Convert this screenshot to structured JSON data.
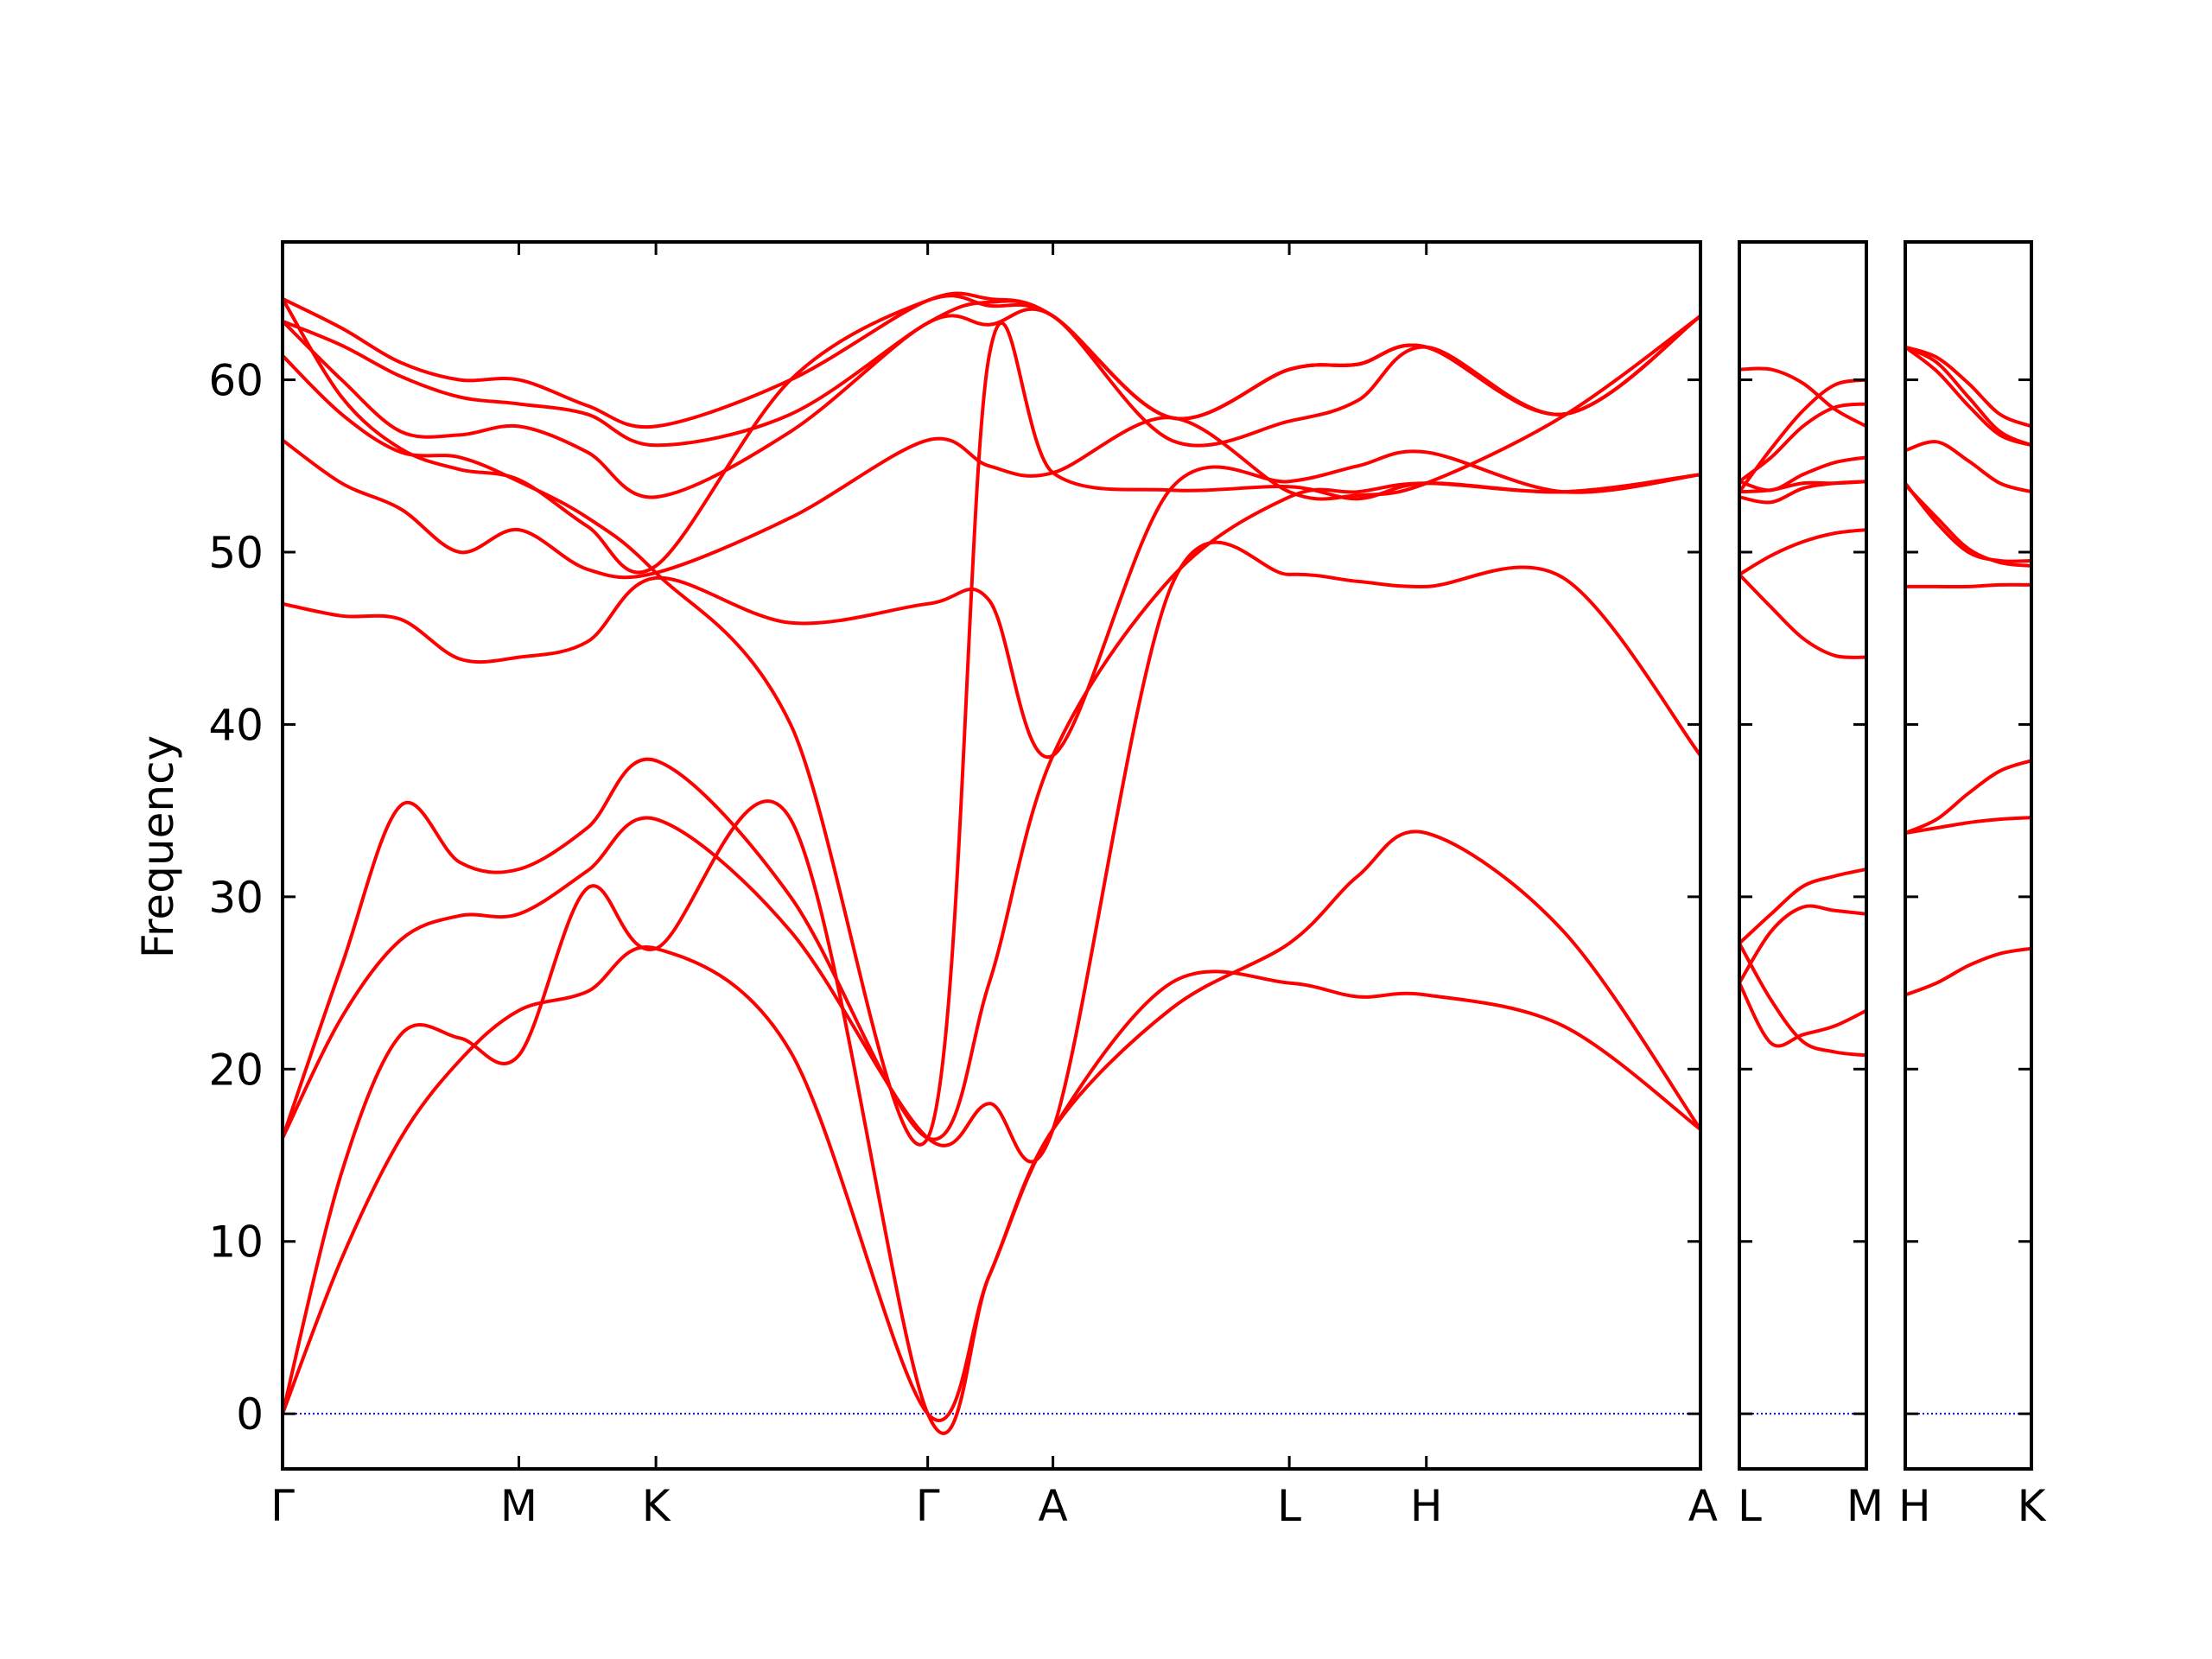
{
  "chart_data": {
    "type": "line",
    "title": "",
    "ylabel": "Frequency",
    "xlabel": "",
    "ylim": [
      -3.2,
      68.0
    ],
    "yticks": [
      0,
      10,
      20,
      30,
      40,
      50,
      60
    ],
    "grid": false,
    "legend": "none",
    "colors": {
      "band": "#ff0000",
      "zero_line": "#0000ff",
      "axes": "#000000",
      "background": "#ffffff"
    },
    "panels": [
      {
        "name": "panel-1",
        "xlim": [
          0,
          6
        ],
        "labels": [
          {
            "x": 0,
            "text": "Γ"
          },
          {
            "x": 1,
            "text": "M"
          },
          {
            "x": 1.58,
            "text": "K"
          },
          {
            "x": 2.73,
            "text": "Γ"
          },
          {
            "x": 3.26,
            "text": "A"
          },
          {
            "x": 4.26,
            "text": "L"
          },
          {
            "x": 4.84,
            "text": "H"
          },
          {
            "x": 6,
            "text": "A"
          }
        ],
        "bands": [
          {
            "x": [
              0,
              0.25,
              0.5,
              0.75,
              1,
              1.29,
              1.58,
              2.15,
              2.73,
              2.99,
              3.26,
              3.76,
              4.26,
              4.55,
              4.84,
              5.42,
              6
            ],
            "y": [
              0,
              9,
              16,
              20.5,
              23.4,
              24.5,
              27,
              21,
              0,
              8,
              16.5,
              25,
              25,
              24.2,
              24.3,
              22.5,
              16.5
            ]
          },
          {
            "x": [
              0,
              0.25,
              0.5,
              0.75,
              1,
              1.29,
              1.58,
              2.15,
              2.73,
              2.99,
              3.26,
              3.76,
              4.26,
              4.55,
              4.84,
              5.42,
              6
            ],
            "y": [
              0,
              14,
              22,
              21.8,
              20.8,
              30.5,
              27,
              34.5,
              0,
              8,
              16.5,
              23.5,
              27.3,
              31.2,
              33.7,
              28,
              16.5
            ]
          },
          {
            "x": [
              0,
              0.25,
              0.5,
              0.75,
              1,
              1.29,
              1.58,
              2.15,
              2.73,
              2.99,
              3.26,
              3.76,
              4.26,
              4.55,
              4.84,
              5.42,
              6
            ],
            "y": [
              16,
              23,
              27.5,
              28.9,
              29,
              31.5,
              34.5,
              28,
              16,
              18,
              16.5,
              48,
              48.7,
              48.3,
              48,
              48.5,
              38.2
            ]
          },
          {
            "x": [
              0,
              0.25,
              0.5,
              0.75,
              1,
              1.29,
              1.58,
              2.15,
              2.73,
              2.99,
              3.26,
              3.76,
              4.26,
              4.55,
              4.84,
              5.42,
              6
            ],
            "y": [
              16,
              26,
              35.3,
              32,
              31.6,
              34,
              37.9,
              30,
              16,
              25,
              38.2,
              48.5,
              53.2,
              53.5,
              54,
              53.5,
              54.5
            ]
          },
          {
            "x": [
              0,
              0.25,
              0.5,
              0.75,
              1,
              1.29,
              1.58,
              2.15,
              2.73,
              2.99,
              3.26,
              3.76,
              4.26,
              4.55,
              4.84,
              5.42,
              6
            ],
            "y": [
              47,
              46.3,
              46.1,
              43.8,
              43.9,
              44.8,
              48.5,
              45.9,
              47,
              47.2,
              38.2,
              53.7,
              54.1,
              55,
              55.8,
              53.5,
              54.5
            ]
          },
          {
            "x": [
              0,
              0.25,
              0.5,
              0.75,
              1,
              1.29,
              1.58,
              2.15,
              2.73,
              2.99,
              3.26,
              3.76,
              4.26,
              4.55,
              4.84,
              5.42,
              6
            ],
            "y": [
              56.5,
              54,
              52.5,
              50,
              51.3,
              49,
              48.8,
              52,
              56.5,
              55,
              54.6,
              57.8,
              53.5,
              53.3,
              54,
              57.9,
              63.7
            ]
          },
          {
            "x": [
              0,
              0.25,
              0.5,
              0.75,
              1,
              1.29,
              1.58,
              2.15,
              2.73,
              2.99,
              3.26,
              3.76,
              4.26,
              4.55,
              4.84,
              5.42,
              6
            ],
            "y": [
              61.4,
              58,
              55.8,
              55.5,
              54.1,
              52,
              48.8,
              40,
              16,
              61.4,
              54.6,
              53.6,
              53.8,
              53.1,
              54,
              53.5,
              54.5
            ]
          },
          {
            "x": [
              0,
              0.25,
              0.5,
              0.75,
              1,
              1.29,
              1.58,
              2.15,
              2.73,
              2.99,
              3.26,
              3.76,
              4.26,
              4.55,
              4.84,
              5.42,
              6
            ],
            "y": [
              63.4,
              60,
              57,
              56.8,
              57.3,
              55.8,
              53.2,
              57,
              63.3,
              63.2,
              63.7,
              56.5,
              57.6,
              58.8,
              61.9,
              58,
              63.7
            ]
          },
          {
            "x": [
              0,
              0.25,
              0.5,
              0.75,
              1,
              1.29,
              1.58,
              2.15,
              2.73,
              2.99,
              3.26,
              3.76,
              4.26,
              4.55,
              4.84,
              5.42,
              6
            ],
            "y": [
              64.7,
              59,
              56,
              54.8,
              54.2,
              51.5,
              49.2,
              60,
              64.6,
              64.3,
              63.7,
              57.8,
              60.6,
              60.9,
              61.9,
              58,
              63.7
            ]
          },
          {
            "x": [
              0,
              0.25,
              0.5,
              0.75,
              1,
              1.29,
              1.58,
              2.15,
              2.73,
              2.99,
              3.26,
              3.76,
              4.26,
              4.55,
              4.84,
              5.42,
              6
            ],
            "y": [
              63.4,
              62,
              60.2,
              59,
              58.6,
              58,
              56.2,
              58,
              63.3,
              64.5,
              63.7,
              57.8,
              60.6,
              60.9,
              61.9,
              58,
              63.7
            ]
          },
          {
            "x": [
              0,
              0.25,
              0.5,
              0.75,
              1,
              1.29,
              1.58,
              2.15,
              2.73,
              2.99,
              3.26,
              3.76,
              4.26,
              4.55,
              4.84,
              5.42,
              6
            ],
            "y": [
              64.7,
              63,
              61,
              60,
              60,
              58.5,
              57.3,
              60,
              64.6,
              64.7,
              63.7,
              57.8,
              60.6,
              60.9,
              61.9,
              58,
              63.7
            ]
          }
        ]
      },
      {
        "name": "panel-2",
        "xlim": [
          0,
          1
        ],
        "labels": [
          {
            "x": 0,
            "text": "L"
          },
          {
            "x": 1,
            "text": "M"
          }
        ],
        "bands": [
          {
            "x": [
              0,
              0.25,
              0.5,
              0.75,
              1
            ],
            "y": [
              25,
              21.5,
              22,
              22.5,
              23.4
            ]
          },
          {
            "x": [
              0,
              0.25,
              0.5,
              0.75,
              1
            ],
            "y": [
              25,
              28,
              29.4,
              29.2,
              29
            ]
          },
          {
            "x": [
              0,
              0.25,
              0.5,
              0.75,
              1
            ],
            "y": [
              27.3,
              29,
              30.6,
              31.2,
              31.6
            ]
          },
          {
            "x": [
              0,
              0.25,
              0.5,
              0.75,
              1
            ],
            "y": [
              27.3,
              24,
              21.6,
              21,
              20.8
            ]
          },
          {
            "x": [
              0,
              0.25,
              0.5,
              0.75,
              1
            ],
            "y": [
              48.7,
              46.8,
              45,
              44,
              43.9
            ]
          },
          {
            "x": [
              0,
              0.25,
              0.5,
              0.75,
              1
            ],
            "y": [
              48.7,
              49.8,
              50.6,
              51.1,
              51.3
            ]
          },
          {
            "x": [
              0,
              0.25,
              0.5,
              0.75,
              1
            ],
            "y": [
              53.2,
              52.9,
              53.7,
              54,
              54.1
            ]
          },
          {
            "x": [
              0,
              0.25,
              0.5,
              0.75,
              1
            ],
            "y": [
              53.5,
              53.6,
              54,
              54,
              54.1
            ]
          },
          {
            "x": [
              0,
              0.25,
              0.5,
              0.75,
              1
            ],
            "y": [
              54.1,
              53.6,
              54.5,
              55.2,
              55.5
            ]
          },
          {
            "x": [
              0,
              0.25,
              0.5,
              0.75,
              1
            ],
            "y": [
              53.5,
              56,
              58.2,
              59.7,
              60
            ]
          },
          {
            "x": [
              0,
              0.25,
              0.5,
              0.75,
              1
            ],
            "y": [
              60.6,
              60.6,
              59.8,
              58.3,
              57.3
            ]
          },
          {
            "x": [
              0,
              0.25,
              0.5,
              0.75,
              1
            ],
            "y": [
              54.1,
              55.5,
              57.3,
              58.4,
              58.6
            ]
          }
        ]
      },
      {
        "name": "panel-3",
        "xlim": [
          0,
          1
        ],
        "labels": [
          {
            "x": 0,
            "text": "H"
          },
          {
            "x": 1,
            "text": "K"
          }
        ],
        "bands": [
          {
            "x": [
              0,
              0.25,
              0.5,
              0.75,
              1
            ],
            "y": [
              24.3,
              25,
              26,
              26.7,
              27
            ]
          },
          {
            "x": [
              0,
              0.25,
              0.5,
              0.75,
              1
            ],
            "y": [
              33.7,
              34,
              34.3,
              34.5,
              34.6
            ]
          },
          {
            "x": [
              0,
              0.25,
              0.5,
              0.75,
              1
            ],
            "y": [
              33.7,
              34.5,
              36,
              37.3,
              37.9
            ]
          },
          {
            "x": [
              0,
              0.25,
              0.5,
              0.75,
              1
            ],
            "y": [
              48,
              48,
              48,
              48.1,
              48.1
            ]
          },
          {
            "x": [
              0,
              0.25,
              0.5,
              0.75,
              1
            ],
            "y": [
              53.9,
              52,
              50.2,
              49.4,
              49.2
            ]
          },
          {
            "x": [
              0,
              0.25,
              0.5,
              0.75,
              1
            ],
            "y": [
              55.9,
              56.4,
              55.3,
              54,
              53.5
            ]
          },
          {
            "x": [
              0,
              0.25,
              0.5,
              0.75,
              1
            ],
            "y": [
              54,
              51.7,
              50,
              49.5,
              49.5
            ]
          },
          {
            "x": [
              0,
              0.25,
              0.5,
              0.75,
              1
            ],
            "y": [
              61.9,
              61,
              59,
              57,
              56.2
            ]
          },
          {
            "x": [
              0,
              0.25,
              0.5,
              0.75,
              1
            ],
            "y": [
              61.9,
              61.3,
              59.8,
              58,
              57.3
            ]
          },
          {
            "x": [
              0,
              0.25,
              0.5,
              0.75,
              1
            ],
            "y": [
              61.9,
              60.5,
              58.5,
              56.8,
              56.2
            ]
          }
        ]
      }
    ]
  }
}
